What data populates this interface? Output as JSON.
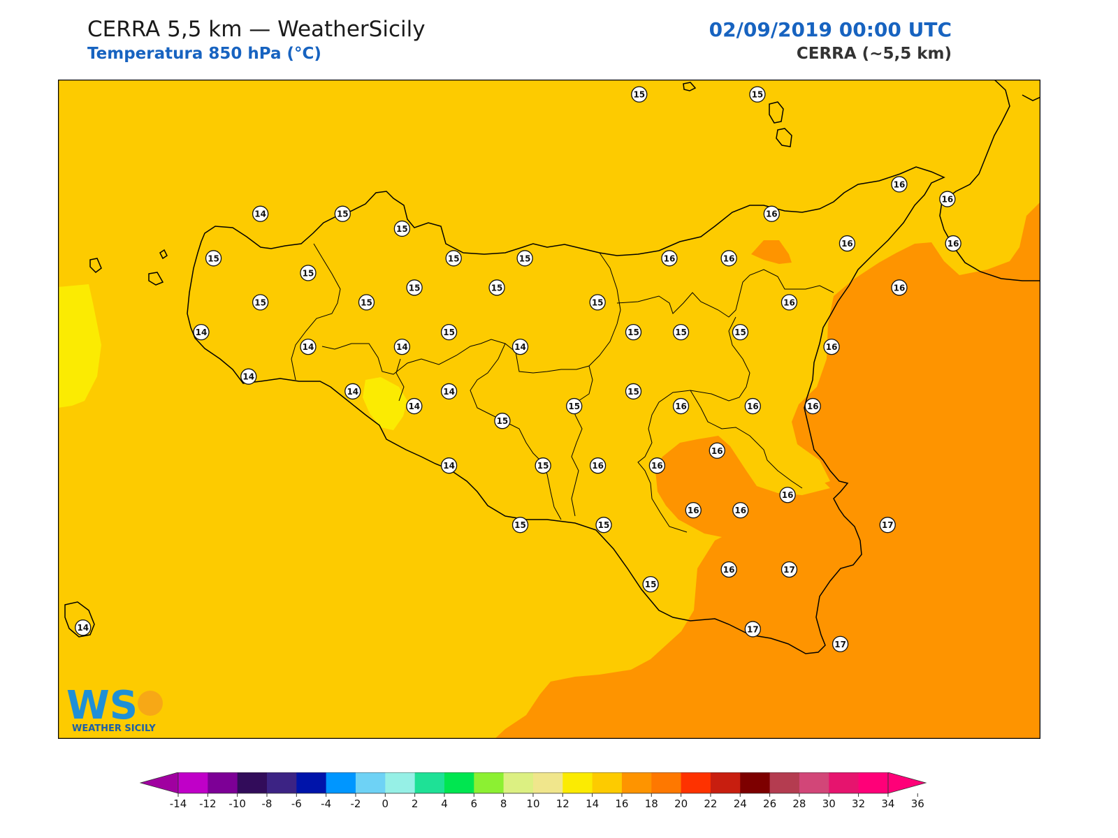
{
  "header": {
    "title": "CERRA 5,5 km — WeatherSicily",
    "subtitle": "Temperatura 850 hPa (°C)",
    "datetime": "02/09/2019 00:00 UTC",
    "model": "CERRA (~5,5 km)"
  },
  "colors": {
    "band_12_14": "#fbeb02",
    "band_14_16": "#fdcb00",
    "band_16_18": "#fe9400",
    "coast": "#000000",
    "marker_fill": "#ffffff"
  },
  "map": {
    "labels": [
      {
        "v": "15",
        "lx": 0.5916,
        "ly": 0.0224
      },
      {
        "v": "15",
        "lx": 0.7119,
        "ly": 0.0224
      },
      {
        "v": "16",
        "lx": 0.8563,
        "ly": 0.1588
      },
      {
        "v": "16",
        "lx": 0.9053,
        "ly": 0.1812
      },
      {
        "v": "14",
        "lx": 0.206,
        "ly": 0.2036
      },
      {
        "v": "15",
        "lx": 0.2897,
        "ly": 0.2036
      },
      {
        "v": "15",
        "lx": 0.3502,
        "ly": 0.2261
      },
      {
        "v": "16",
        "lx": 0.7264,
        "ly": 0.2036
      },
      {
        "v": "16",
        "lx": 0.8033,
        "ly": 0.2485
      },
      {
        "v": "16",
        "lx": 0.9112,
        "ly": 0.2485
      },
      {
        "v": "15",
        "lx": 0.1583,
        "ly": 0.271
      },
      {
        "v": "15",
        "lx": 0.4027,
        "ly": 0.271
      },
      {
        "v": "15",
        "lx": 0.4752,
        "ly": 0.271
      },
      {
        "v": "16",
        "lx": 0.6223,
        "ly": 0.271
      },
      {
        "v": "16",
        "lx": 0.6829,
        "ly": 0.271
      },
      {
        "v": "15",
        "lx": 0.2546,
        "ly": 0.2933
      },
      {
        "v": "15",
        "lx": 0.3628,
        "ly": 0.3155
      },
      {
        "v": "15",
        "lx": 0.4467,
        "ly": 0.3155
      },
      {
        "v": "16",
        "lx": 0.8563,
        "ly": 0.3155
      },
      {
        "v": "15",
        "lx": 0.206,
        "ly": 0.3378
      },
      {
        "v": "15",
        "lx": 0.314,
        "ly": 0.3378
      },
      {
        "v": "15",
        "lx": 0.5492,
        "ly": 0.3378
      },
      {
        "v": "16",
        "lx": 0.7443,
        "ly": 0.3378
      },
      {
        "v": "14",
        "lx": 0.1458,
        "ly": 0.3831
      },
      {
        "v": "15",
        "lx": 0.398,
        "ly": 0.3831
      },
      {
        "v": "15",
        "lx": 0.5857,
        "ly": 0.3831
      },
      {
        "v": "15",
        "lx": 0.6341,
        "ly": 0.3831
      },
      {
        "v": "15",
        "lx": 0.6945,
        "ly": 0.3831
      },
      {
        "v": "14",
        "lx": 0.2546,
        "ly": 0.4053
      },
      {
        "v": "14",
        "lx": 0.3502,
        "ly": 0.4053
      },
      {
        "v": "14",
        "lx": 0.4705,
        "ly": 0.4053
      },
      {
        "v": "16",
        "lx": 0.7874,
        "ly": 0.4053
      },
      {
        "v": "14",
        "lx": 0.194,
        "ly": 0.4504
      },
      {
        "v": "14",
        "lx": 0.3,
        "ly": 0.4729
      },
      {
        "v": "14",
        "lx": 0.398,
        "ly": 0.4729
      },
      {
        "v": "15",
        "lx": 0.5857,
        "ly": 0.4729
      },
      {
        "v": "14",
        "lx": 0.3626,
        "ly": 0.4953
      },
      {
        "v": "15",
        "lx": 0.5254,
        "ly": 0.4953
      },
      {
        "v": "16",
        "lx": 0.6341,
        "ly": 0.4953
      },
      {
        "v": "16",
        "lx": 0.7072,
        "ly": 0.4953
      },
      {
        "v": "16",
        "lx": 0.7683,
        "ly": 0.4953
      },
      {
        "v": "15",
        "lx": 0.4523,
        "ly": 0.5177
      },
      {
        "v": "16",
        "lx": 0.6709,
        "ly": 0.5628
      },
      {
        "v": "14",
        "lx": 0.398,
        "ly": 0.5855
      },
      {
        "v": "15",
        "lx": 0.4937,
        "ly": 0.5855
      },
      {
        "v": "16",
        "lx": 0.5495,
        "ly": 0.5855
      },
      {
        "v": "16",
        "lx": 0.6098,
        "ly": 0.5855
      },
      {
        "v": "16",
        "lx": 0.7426,
        "ly": 0.63
      },
      {
        "v": "16",
        "lx": 0.6467,
        "ly": 0.6532
      },
      {
        "v": "16",
        "lx": 0.6947,
        "ly": 0.6532
      },
      {
        "v": "15",
        "lx": 0.4705,
        "ly": 0.6755
      },
      {
        "v": "15",
        "lx": 0.5555,
        "ly": 0.6755
      },
      {
        "v": "17",
        "lx": 0.8444,
        "ly": 0.6755
      },
      {
        "v": "16",
        "lx": 0.6829,
        "ly": 0.7431
      },
      {
        "v": "17",
        "lx": 0.7443,
        "ly": 0.7431
      },
      {
        "v": "15",
        "lx": 0.6032,
        "ly": 0.7655
      },
      {
        "v": "14",
        "lx": 0.0254,
        "ly": 0.8313
      },
      {
        "v": "17",
        "lx": 0.7072,
        "ly": 0.8336
      },
      {
        "v": "17",
        "lx": 0.7963,
        "ly": 0.8562
      }
    ]
  },
  "logo": {
    "monogram": "WS",
    "text": "WEATHER SICILY"
  },
  "colorbar": {
    "ticks": [
      "-14",
      "-12",
      "-10",
      "-8",
      "-6",
      "-4",
      "-2",
      "0",
      "2",
      "4",
      "6",
      "8",
      "10",
      "12",
      "14",
      "16",
      "18",
      "20",
      "22",
      "24",
      "26",
      "28",
      "30",
      "32",
      "34",
      "36"
    ],
    "colors": [
      "#c000c8",
      "#7d0096",
      "#320c5a",
      "#3c2384",
      "#0014aa",
      "#0096ff",
      "#6ed2f5",
      "#96f0e6",
      "#1ee196",
      "#00e650",
      "#8cf032",
      "#dcf082",
      "#f0e68c",
      "#fbeb02",
      "#fdcb00",
      "#fe9400",
      "#fe7800",
      "#fe3200",
      "#c81e0f",
      "#7d0000",
      "#b43c50",
      "#d24678",
      "#e6146e",
      "#ff0078"
    ],
    "under_color": "#a000a0",
    "over_color": "#ff0078"
  }
}
